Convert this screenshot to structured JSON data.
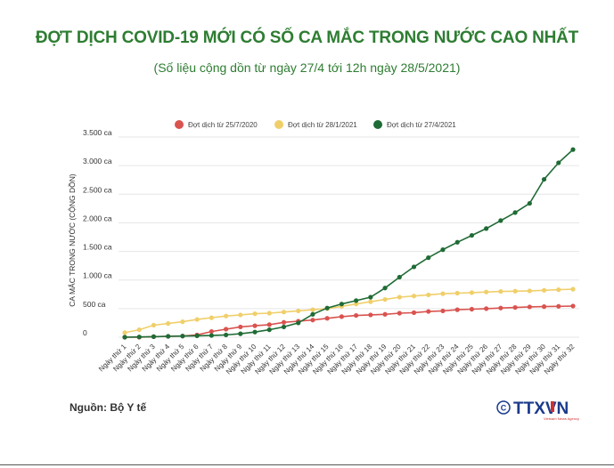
{
  "title": "ĐỢT DỊCH COVID-19 MỚI CÓ SỐ CA MẮC TRONG NƯỚC CAO NHẤT",
  "subtitle": "(Số liệu cộng dồn từ ngày 27/4 tới 12h ngày 28/5/2021)",
  "source": "Nguồn: Bộ Y tế",
  "logo_text": "TTXVN",
  "chart_data": {
    "type": "line",
    "ylabel": "CA MẮC TRONG NƯỚC (CỘNG DỒN)",
    "ylim": [
      0,
      3500
    ],
    "y_ticks": [
      0,
      500,
      1000,
      1500,
      2000,
      2500,
      3000,
      3500
    ],
    "y_tick_labels": [
      "0",
      "500 ca",
      "1.000 ca",
      "1.500 ca",
      "2.000 ca",
      "2.500 ca",
      "3.000 ca",
      "3.500 ca"
    ],
    "grid": true,
    "legend_position": "top-center",
    "categories": [
      "Ngày thứ 1",
      "Ngày thứ 2",
      "Ngày thứ 3",
      "Ngày thứ 4",
      "Ngày thứ 5",
      "Ngày thứ 6",
      "Ngày thứ 7",
      "Ngày thứ 8",
      "Ngày thứ 9",
      "Ngày thứ 10",
      "Ngày thứ 11",
      "Ngày thứ 12",
      "Ngày thứ 13",
      "Ngày thứ 14",
      "Ngày thứ 15",
      "Ngày thứ 16",
      "Ngày thứ 17",
      "Ngày thứ 18",
      "Ngày thứ 19",
      "Ngày thứ 20",
      "Ngày thứ 21",
      "Ngày thứ 22",
      "Ngày thứ 23",
      "Ngày thứ 24",
      "Ngày thứ 25",
      "Ngày thứ 26",
      "Ngày thứ 27",
      "Ngày thứ 28",
      "Ngày thứ 29",
      "Ngày thứ 30",
      "Ngày thứ 31",
      "Ngày thứ 32"
    ],
    "series": [
      {
        "name": "Đợt dịch từ 25/7/2020",
        "color": "#d9534f",
        "values": [
          0,
          0,
          10,
          15,
          20,
          40,
          100,
          140,
          180,
          200,
          220,
          260,
          280,
          300,
          330,
          360,
          380,
          390,
          400,
          420,
          430,
          450,
          460,
          480,
          490,
          500,
          510,
          520,
          530,
          535,
          540,
          545
        ]
      },
      {
        "name": "Đợt dịch từ 28/1/2021",
        "color": "#f0cf6b",
        "values": [
          80,
          130,
          210,
          240,
          270,
          310,
          340,
          370,
          390,
          410,
          420,
          440,
          460,
          480,
          500,
          540,
          580,
          620,
          660,
          700,
          720,
          740,
          760,
          770,
          780,
          790,
          800,
          805,
          810,
          820,
          830,
          840
        ]
      },
      {
        "name": "Đợt dịch từ 27/4/2021",
        "color": "#1f6b35",
        "values": [
          0,
          5,
          10,
          15,
          20,
          25,
          30,
          40,
          60,
          90,
          130,
          180,
          250,
          400,
          510,
          580,
          640,
          700,
          860,
          1050,
          1230,
          1390,
          1530,
          1660,
          1780,
          1900,
          2040,
          2180,
          2340,
          2760,
          3050,
          3280
        ]
      }
    ]
  }
}
